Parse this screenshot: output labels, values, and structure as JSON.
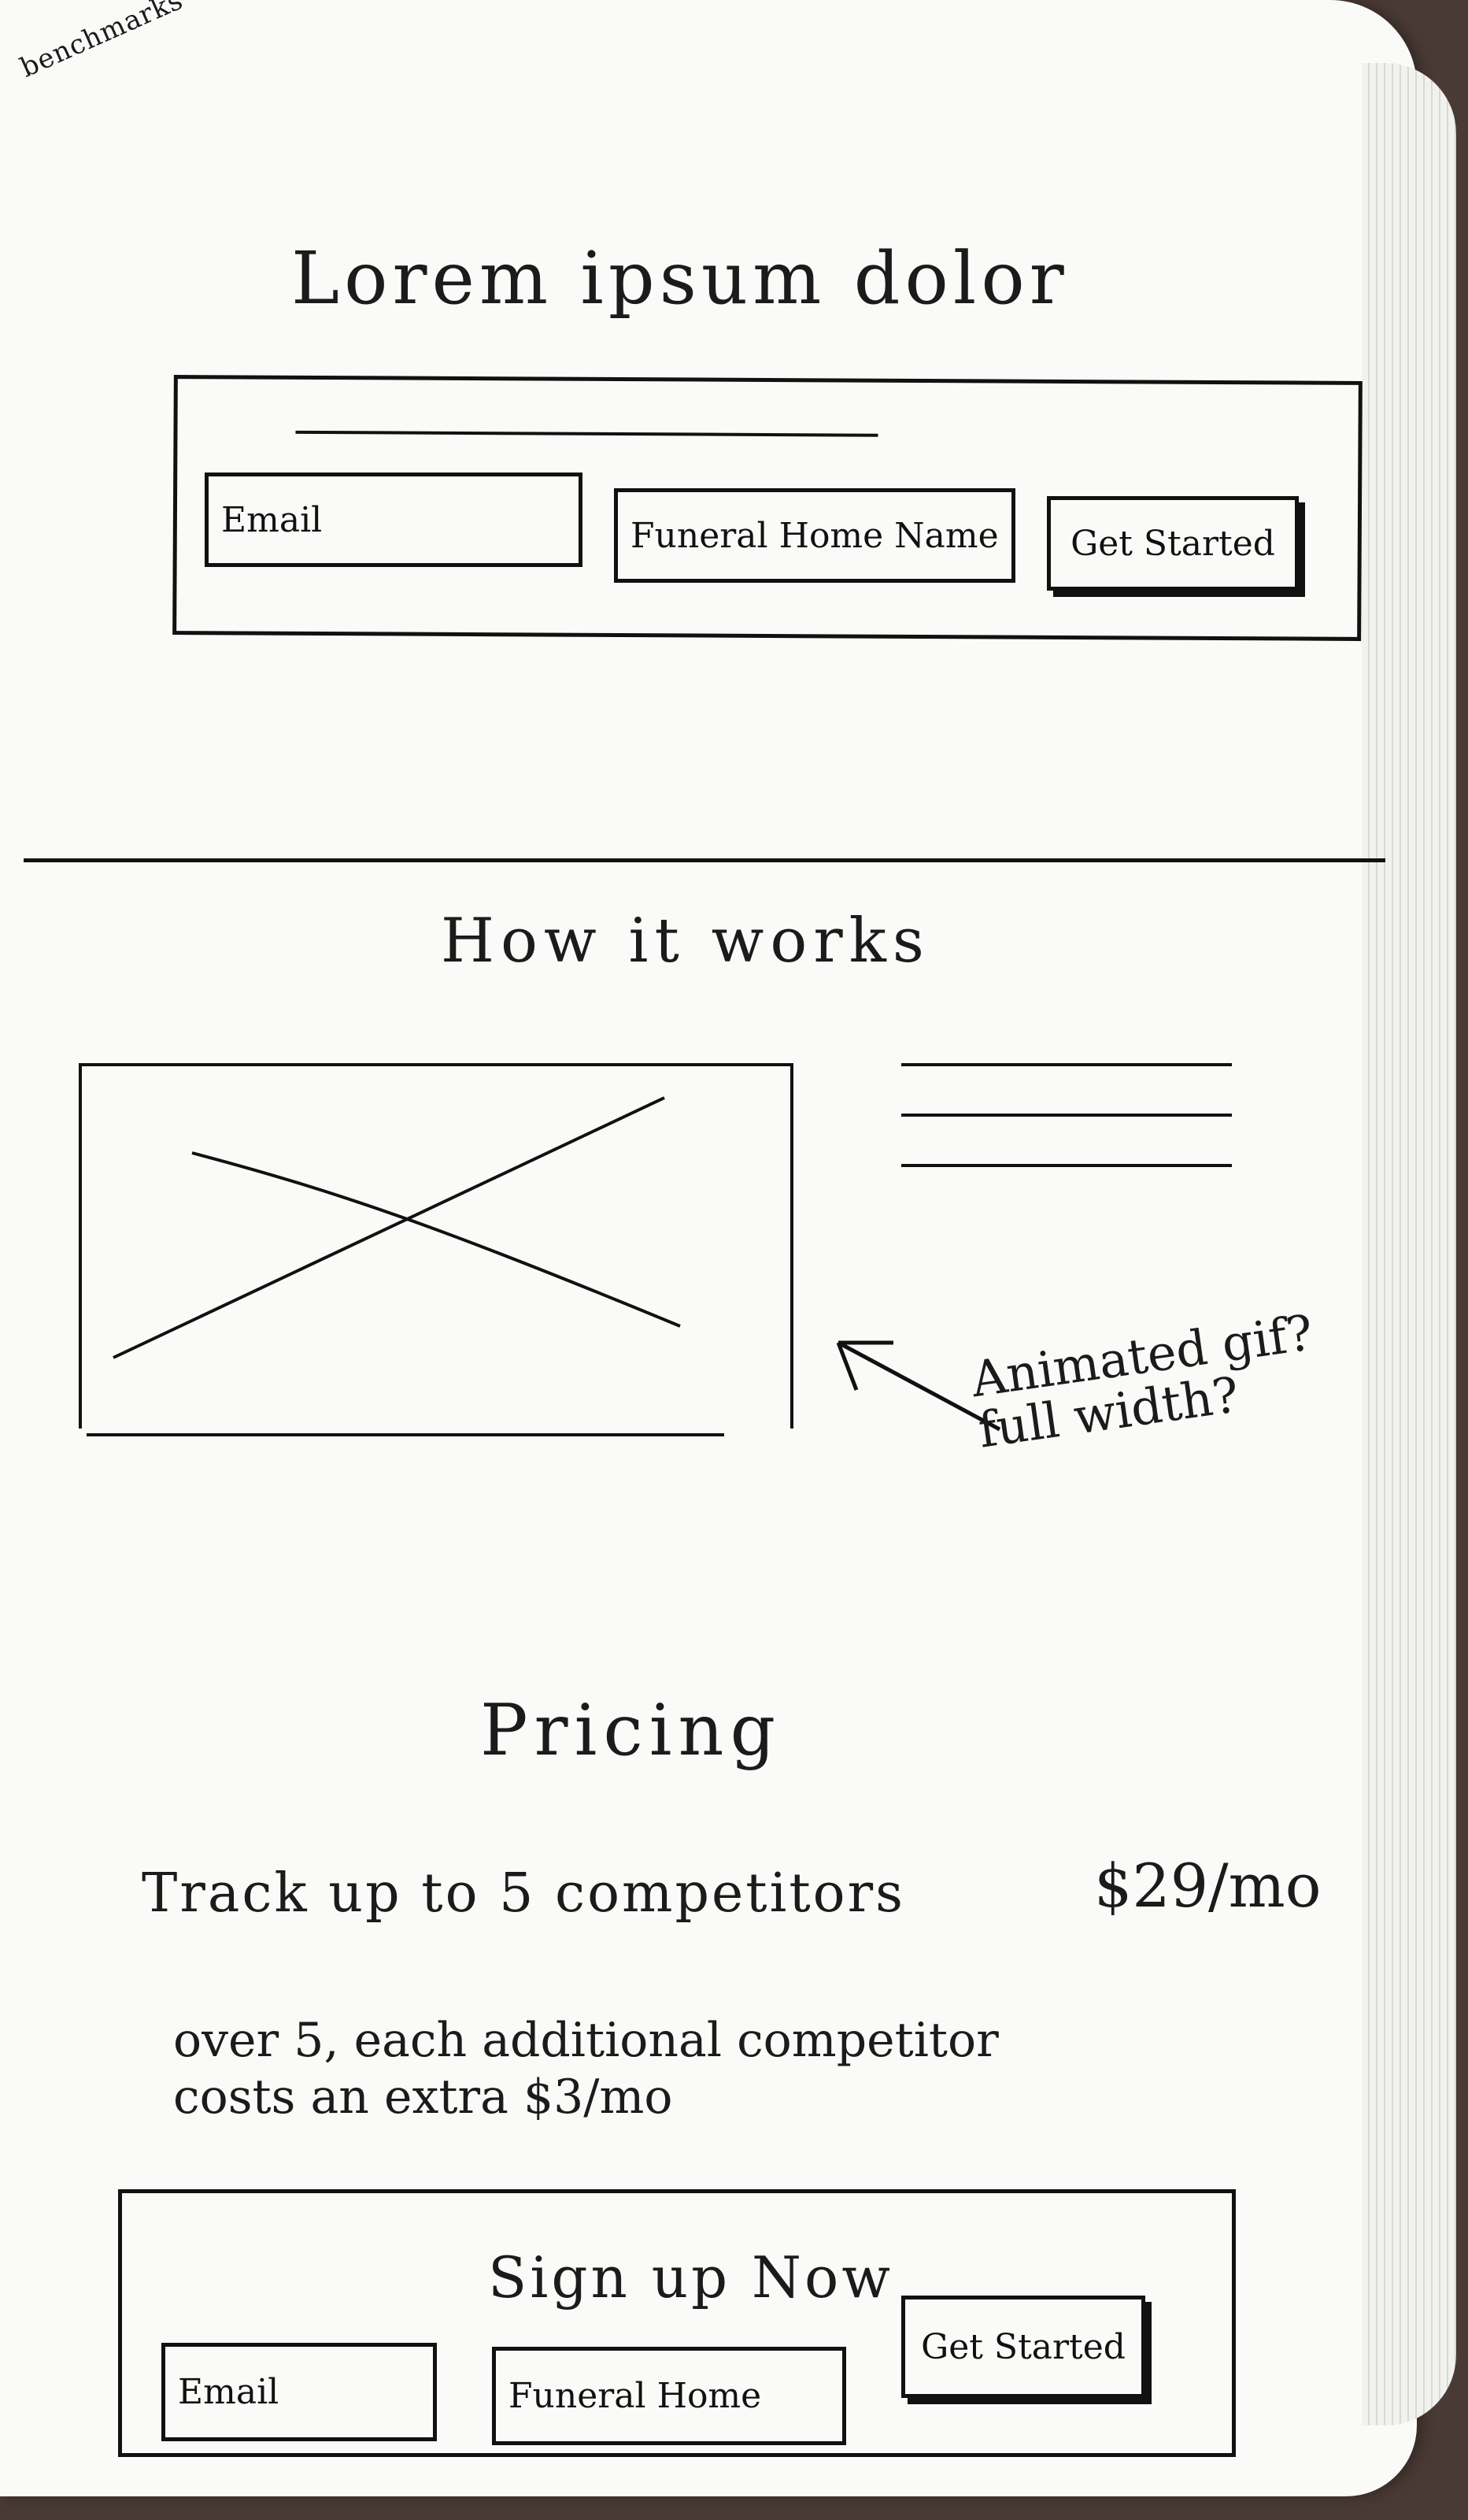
{
  "note": {
    "corner": "benchmarks"
  },
  "hero": {
    "title": "Lorem ipsum dolor",
    "email_placeholder": "Email",
    "funeral_home_placeholder": "Funeral Home Name",
    "cta_label": "Get Started"
  },
  "how": {
    "title": "How it works",
    "annotation": "Animated gif? full width?"
  },
  "pricing": {
    "title": "Pricing",
    "plan_text": "Track up to 5 competitors",
    "plan_price": "$29/mo",
    "overage_text": "over 5, each additional competitor costs an extra $3/mo"
  },
  "signup": {
    "title": "Sign up Now",
    "email_placeholder": "Email",
    "funeral_home_placeholder": "Funeral Home",
    "cta_label": "Get Started"
  }
}
